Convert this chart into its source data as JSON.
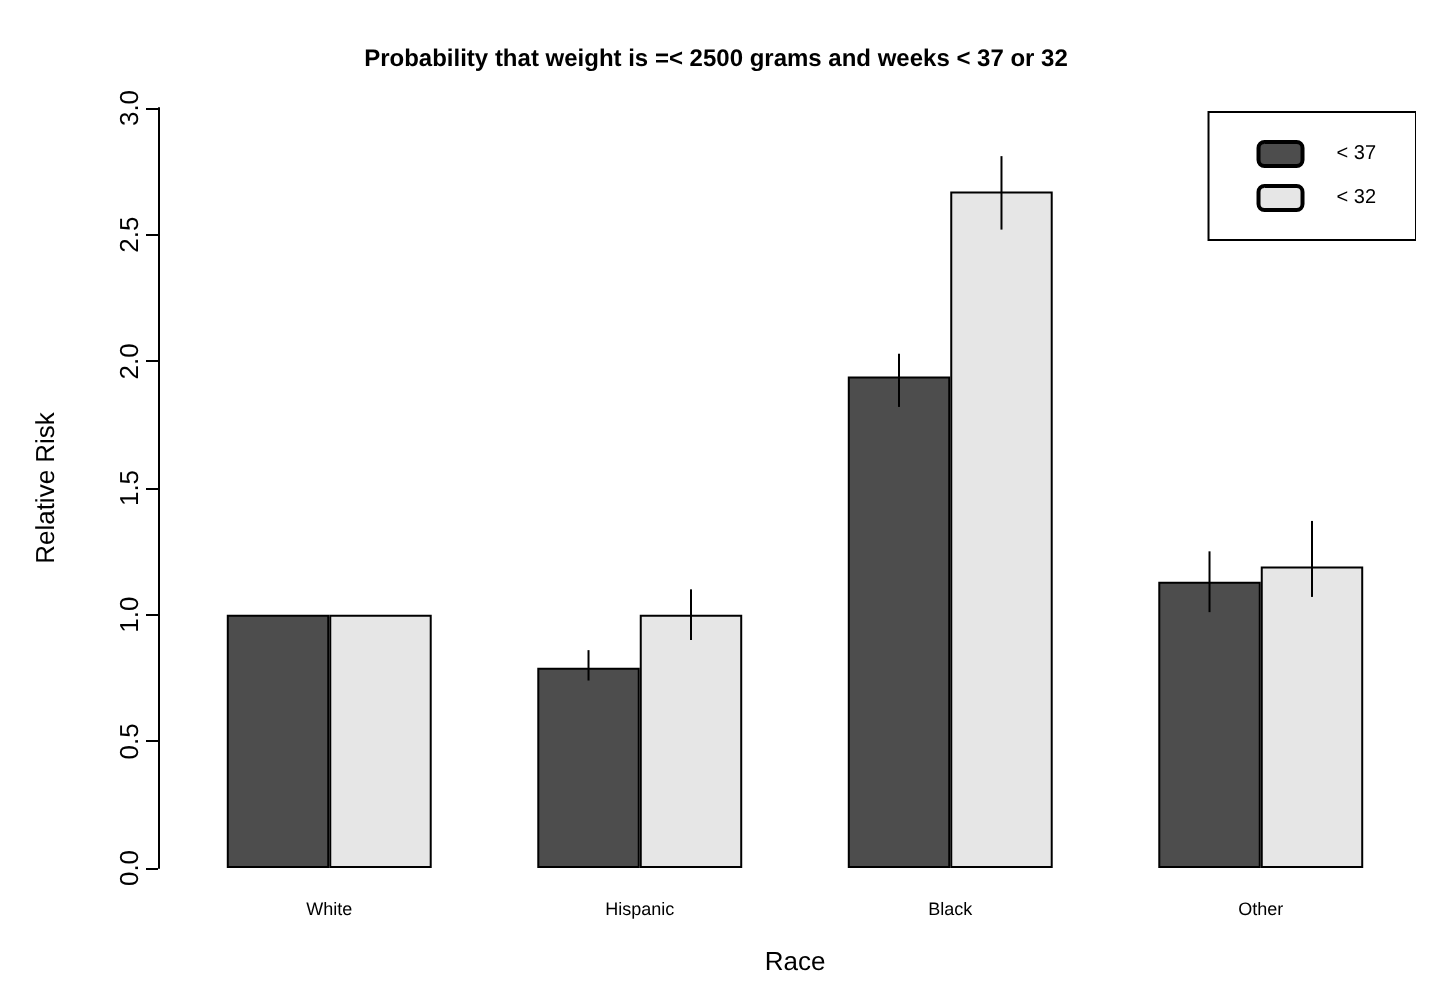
{
  "chart_data": {
    "type": "bar",
    "title": "Probability that weight is =< 2500 grams and weeks < 37 or 32",
    "xlabel": "Race",
    "ylabel": "Relative Risk",
    "categories": [
      "White",
      "Hispanic",
      "Black",
      "Other"
    ],
    "series": [
      {
        "name": "< 37",
        "color": "#4d4d4d",
        "values": [
          1.0,
          0.79,
          1.94,
          1.13
        ],
        "errors": [
          null,
          [
            0.74,
            0.86
          ],
          [
            1.82,
            2.03
          ],
          [
            1.01,
            1.25
          ]
        ]
      },
      {
        "name": "< 32",
        "color": "#e6e6e6",
        "values": [
          1.0,
          1.0,
          2.67,
          1.19
        ],
        "errors": [
          null,
          [
            0.9,
            1.1
          ],
          [
            2.52,
            2.81
          ],
          [
            1.07,
            1.37
          ]
        ]
      }
    ],
    "ylim": [
      0,
      3
    ],
    "yticks": [
      {
        "value": 0,
        "label": "0.0"
      },
      0.5,
      {
        "value": 1,
        "label": "1.0"
      },
      1.5,
      {
        "value": 2,
        "label": "2.0"
      },
      2.5,
      {
        "value": 3,
        "label": "3.0"
      }
    ],
    "legend": "top right",
    "grid": false
  }
}
